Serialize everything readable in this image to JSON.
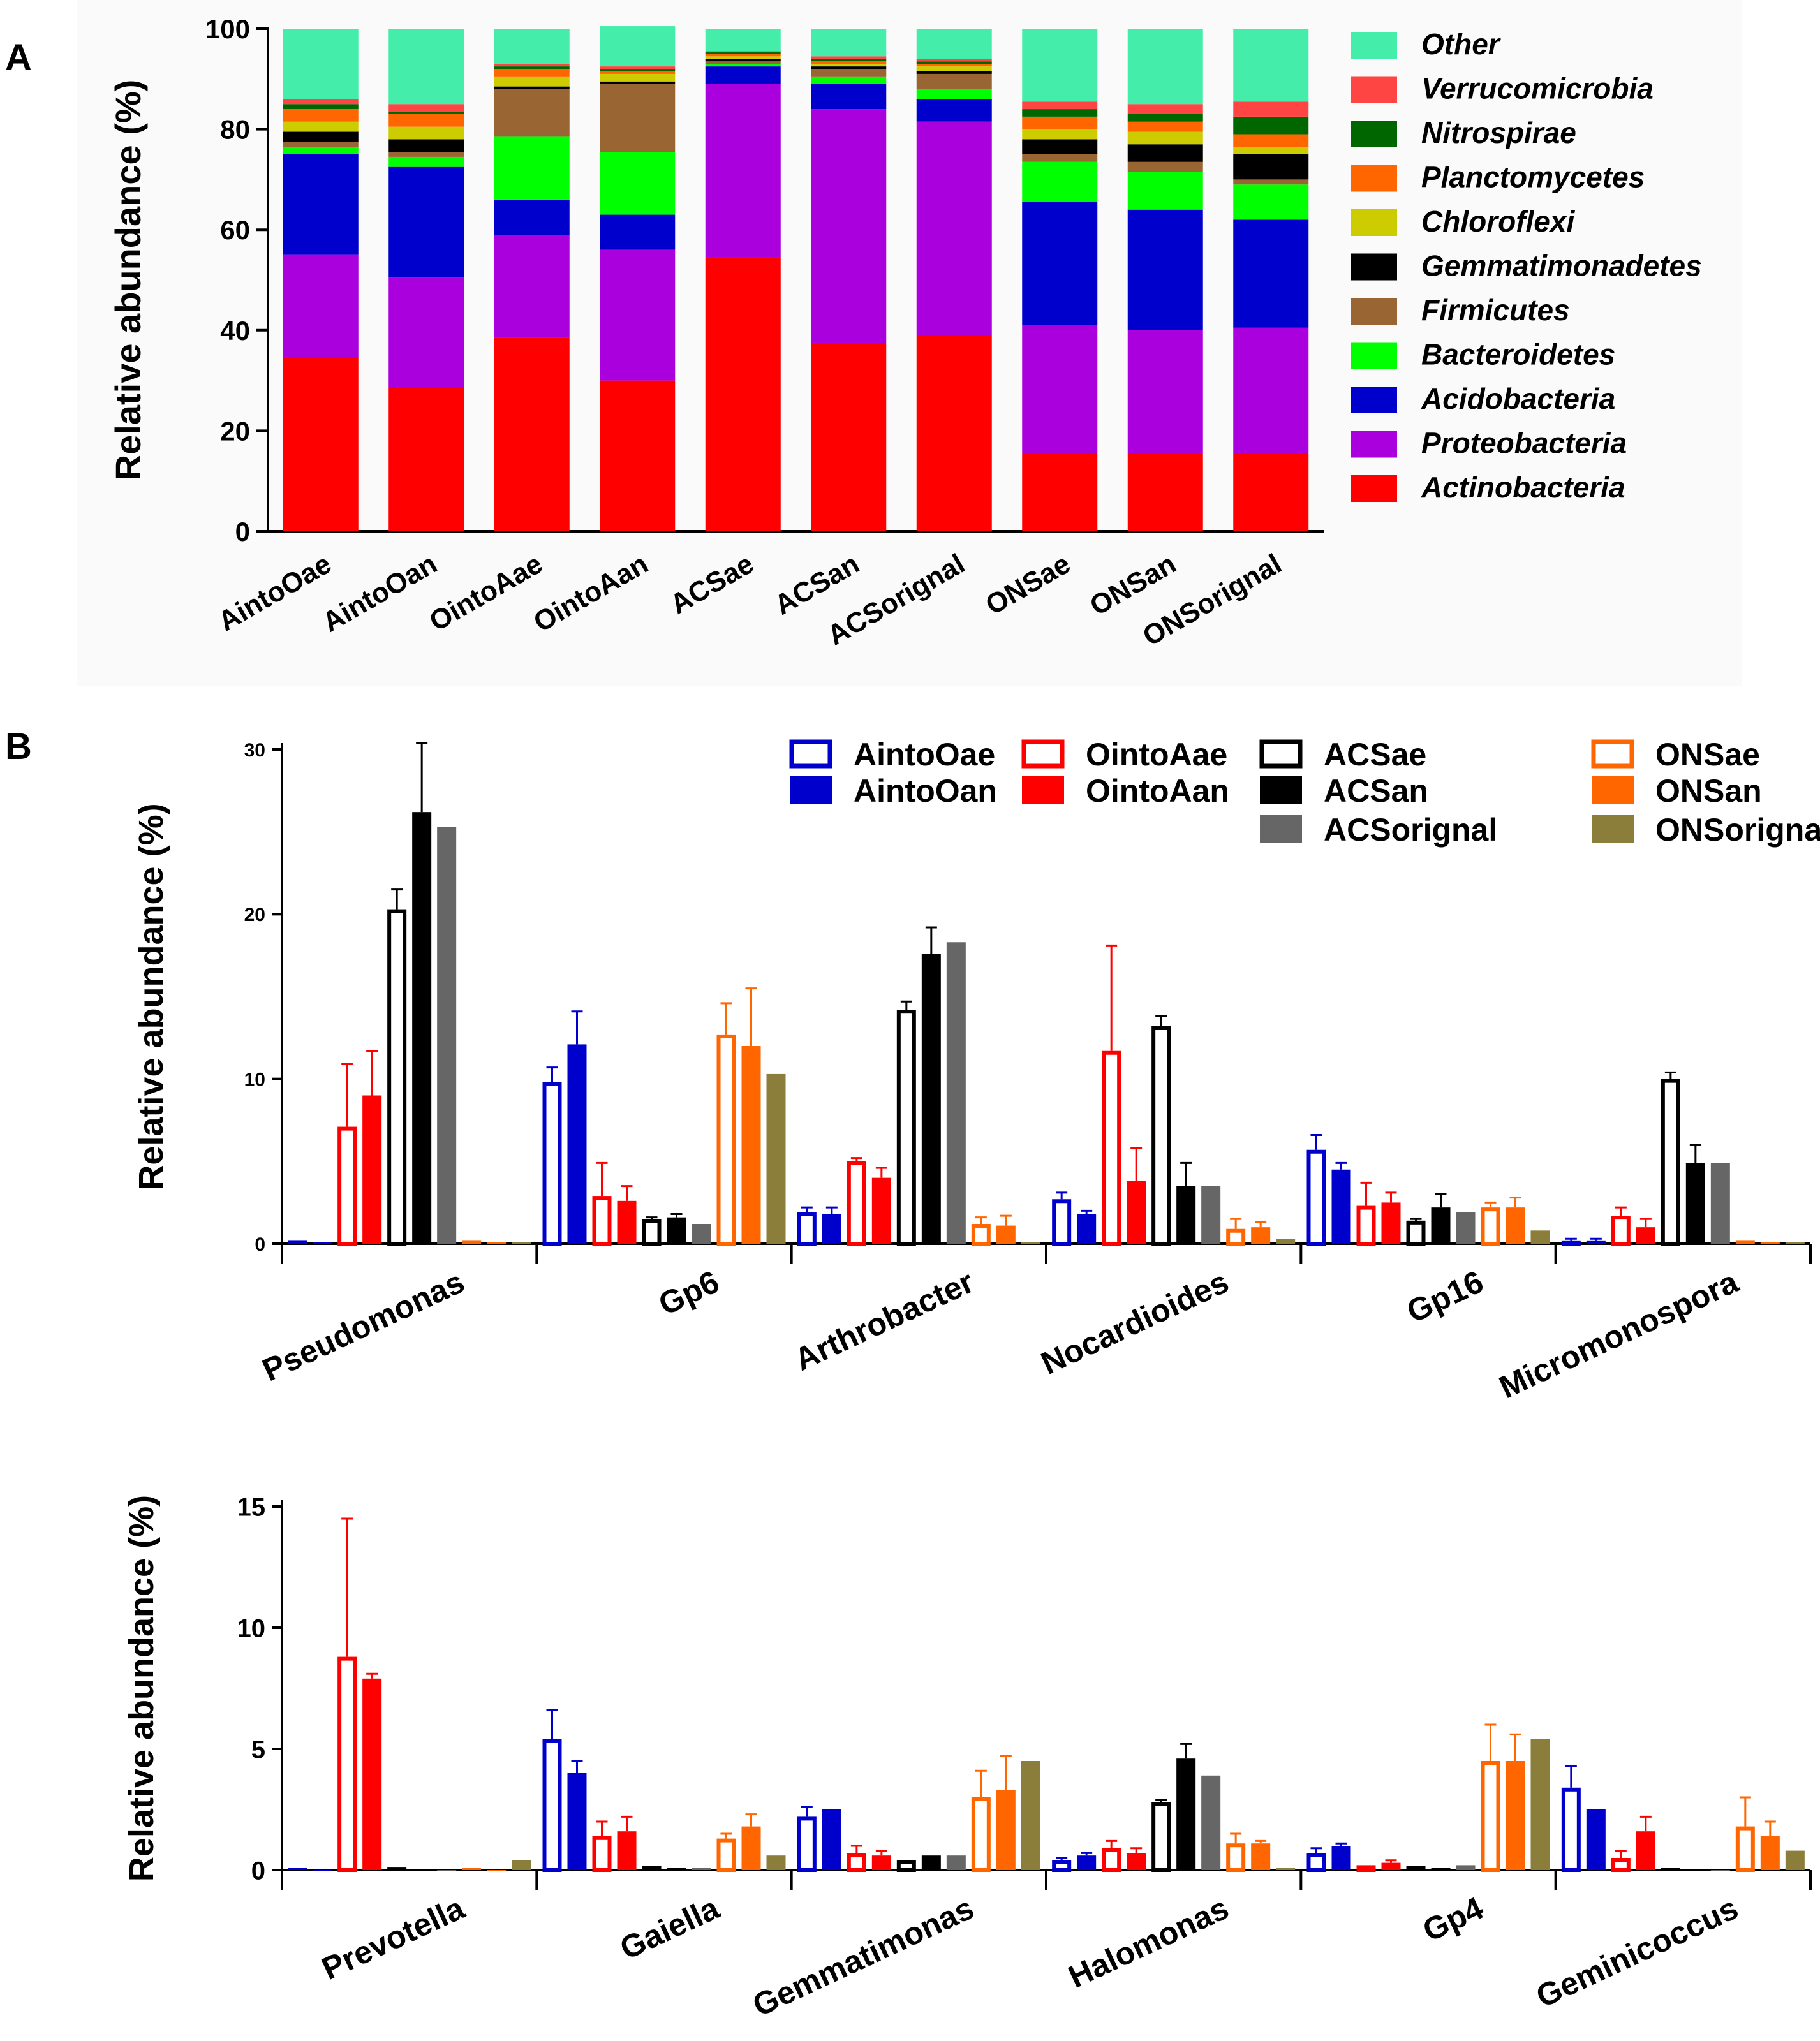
{
  "figure": {
    "panel_a_label": "A",
    "panel_b_label": "B"
  },
  "chart_data": [
    {
      "panel": "A",
      "type": "bar",
      "stacked": true,
      "ylabel": "Relative abundance (%)",
      "ylim": [
        0,
        100
      ],
      "yticks": [
        "0",
        "20",
        "40",
        "60",
        "80",
        "100"
      ],
      "categories": [
        "AintoOae",
        "AintoOan",
        "OintoAae",
        "OintoAan",
        "ACSae",
        "ACSan",
        "ACSorignal",
        "ONSae",
        "ONSan",
        "ONSorignal"
      ],
      "legend_order": [
        "Other",
        "Verrucomicrobia",
        "Nitrospirae",
        "Planctomycetes",
        "Chloroflexi",
        "Gemmatimonadetes",
        "Firmicutes",
        "Bacteroidetes",
        "Acidobacteria",
        "Proteobacteria",
        "Actinobacteria"
      ],
      "series": [
        {
          "name": "Actinobacteria",
          "color": "#ff0000",
          "values": [
            34.5,
            28.5,
            38.5,
            30,
            54.5,
            37.5,
            39,
            15.5,
            15.5,
            15.5
          ]
        },
        {
          "name": "Proteobacteria",
          "color": "#aa00dd",
          "values": [
            20.5,
            22,
            20.5,
            26,
            34.5,
            46.5,
            42.5,
            25.5,
            24.5,
            25
          ]
        },
        {
          "name": "Acidobacteria",
          "color": "#0000cc",
          "values": [
            20,
            22,
            7,
            7,
            3.5,
            5,
            4.5,
            24.5,
            24,
            21.5
          ]
        },
        {
          "name": "Bacteroidetes",
          "color": "#00ff00",
          "values": [
            1.5,
            2,
            12.5,
            12.5,
            0.5,
            1.5,
            2,
            8,
            7.5,
            7
          ]
        },
        {
          "name": "Firmicutes",
          "color": "#996633",
          "values": [
            1,
            1,
            9.5,
            13.5,
            0.5,
            1.5,
            3,
            1.5,
            2,
            1
          ]
        },
        {
          "name": "Gemmatimonadetes",
          "color": "#000000",
          "values": [
            2,
            2.5,
            0.5,
            0.5,
            0.5,
            0.5,
            0.5,
            3,
            3.5,
            5
          ]
        },
        {
          "name": "Chloroflexi",
          "color": "#cccc00",
          "values": [
            2,
            2.5,
            2,
            1.5,
            0.5,
            0.5,
            1,
            2,
            2.5,
            1.5
          ]
        },
        {
          "name": "Planctomycetes",
          "color": "#ff6600",
          "values": [
            2.5,
            2.5,
            1.5,
            0.5,
            0.5,
            0.5,
            0.5,
            2.5,
            2,
            2.5
          ]
        },
        {
          "name": "Nitrospirae",
          "color": "#006600",
          "values": [
            1,
            0.5,
            0.5,
            0.5,
            0.3,
            0.5,
            0.5,
            1.5,
            1.5,
            3.5
          ]
        },
        {
          "name": "Verrucomicrobia",
          "color": "#ff4444",
          "values": [
            1,
            1.5,
            0.5,
            0.5,
            0.2,
            0.5,
            0.5,
            1.5,
            2,
            3
          ]
        },
        {
          "name": "Other",
          "color": "#44eeaa",
          "values": [
            14,
            15,
            7,
            8,
            4.5,
            5.5,
            6,
            14.5,
            15,
            14.5
          ]
        }
      ]
    },
    {
      "panel": "B-top",
      "type": "bar",
      "ylabel": "Relative abundance (%)",
      "ylim": [
        0,
        30
      ],
      "yticks": [
        "0",
        "10",
        "20",
        "30"
      ],
      "categories": [
        "Pseudomonas",
        "Gp6",
        "Arthrobacter",
        "Nocardioides",
        "Gp16",
        "Micromonospora"
      ],
      "series": [
        {
          "name": "AintoOae",
          "color": "#0000cc",
          "hollow": true,
          "values": [
            0.1,
            9.8,
            1.9,
            2.7,
            5.7,
            0.2
          ],
          "errors": [
            0,
            0.9,
            0.3,
            0.4,
            0.9,
            0.1
          ]
        },
        {
          "name": "AintoOan",
          "color": "#0000cc",
          "hollow": false,
          "values": [
            0.1,
            12.1,
            1.8,
            1.8,
            4.5,
            0.2
          ],
          "errors": [
            0,
            2.0,
            0.4,
            0.2,
            0.4,
            0.1
          ]
        },
        {
          "name": "OintoAae",
          "color": "#ff0000",
          "hollow": true,
          "values": [
            7.1,
            2.9,
            5.0,
            11.7,
            2.3,
            1.7
          ],
          "errors": [
            3.8,
            2.0,
            0.2,
            6.4,
            1.4,
            0.5
          ]
        },
        {
          "name": "OintoAan",
          "color": "#ff0000",
          "hollow": false,
          "values": [
            9.0,
            2.6,
            4.0,
            3.8,
            2.5,
            1.0
          ],
          "errors": [
            2.7,
            0.9,
            0.6,
            2.0,
            0.6,
            0.5
          ]
        },
        {
          "name": "ACSae",
          "color": "#000000",
          "hollow": true,
          "values": [
            20.3,
            1.5,
            14.2,
            13.2,
            1.4,
            10.0
          ],
          "errors": [
            1.2,
            0.1,
            0.5,
            0.6,
            0.1,
            0.4
          ]
        },
        {
          "name": "ACSan",
          "color": "#000000",
          "hollow": false,
          "values": [
            26.2,
            1.6,
            17.6,
            3.5,
            2.2,
            4.9
          ],
          "errors": [
            4.2,
            0.2,
            1.6,
            1.4,
            0.8,
            1.1
          ]
        },
        {
          "name": "ACSorignal",
          "color": "#666666",
          "hollow": false,
          "values": [
            25.3,
            1.2,
            18.3,
            3.5,
            1.9,
            4.9
          ],
          "errors": [
            0,
            0,
            0,
            0,
            0,
            0
          ]
        },
        {
          "name": "ONSae",
          "color": "#ff6600",
          "hollow": true,
          "values": [
            0.1,
            12.7,
            1.2,
            0.9,
            2.2,
            0.1
          ],
          "errors": [
            0,
            1.9,
            0.4,
            0.6,
            0.3,
            0
          ]
        },
        {
          "name": "ONSan",
          "color": "#ff6600",
          "hollow": false,
          "values": [
            0.1,
            12.0,
            1.1,
            1.0,
            2.2,
            0.1
          ],
          "errors": [
            0,
            3.5,
            0.6,
            0.3,
            0.6,
            0
          ]
        },
        {
          "name": "ONSorignal",
          "color": "#8b7d3a",
          "hollow": false,
          "values": [
            0.1,
            10.3,
            0.1,
            0.3,
            0.8,
            0.1
          ],
          "errors": [
            0,
            0,
            0,
            0,
            0,
            0
          ]
        }
      ]
    },
    {
      "panel": "B-bottom",
      "type": "bar",
      "ylabel": "Relative abundance (%)",
      "ylim": [
        0,
        15
      ],
      "yticks": [
        "0",
        "5",
        "10",
        "15"
      ],
      "categories": [
        "Prevotella",
        "Gaiella",
        "Gemmatimonas",
        "Halomonas",
        "Gp4",
        "Geminicoccus"
      ],
      "series": [
        {
          "name": "AintoOae",
          "color": "#0000cc",
          "hollow": true,
          "values": [
            0,
            5.4,
            2.2,
            0.4,
            0.7,
            3.4
          ],
          "errors": [
            0,
            1.2,
            0.4,
            0.1,
            0.2,
            0.9
          ]
        },
        {
          "name": "AintoOan",
          "color": "#0000cc",
          "hollow": false,
          "values": [
            0,
            4.0,
            2.5,
            0.6,
            1.0,
            2.5
          ],
          "errors": [
            0,
            0.5,
            0,
            0.1,
            0.1,
            0
          ]
        },
        {
          "name": "OintoAae",
          "color": "#ff0000",
          "hollow": true,
          "values": [
            8.8,
            1.4,
            0.7,
            0.9,
            0.2,
            0.5
          ],
          "errors": [
            5.7,
            0.6,
            0.3,
            0.3,
            0,
            0.3
          ]
        },
        {
          "name": "OintoAan",
          "color": "#ff0000",
          "hollow": false,
          "values": [
            7.9,
            1.6,
            0.6,
            0.7,
            0.3,
            1.6
          ],
          "errors": [
            0.2,
            0.6,
            0.2,
            0.2,
            0.1,
            0.6
          ]
        },
        {
          "name": "ACSae",
          "color": "#000000",
          "hollow": true,
          "values": [
            0.05,
            0.1,
            0.4,
            2.8,
            0.1,
            0
          ],
          "errors": [
            0,
            0,
            0,
            0.1,
            0,
            0
          ]
        },
        {
          "name": "ACSan",
          "color": "#000000",
          "hollow": false,
          "values": [
            0.05,
            0.1,
            0.6,
            4.6,
            0.1,
            0
          ],
          "errors": [
            0,
            0,
            0,
            0.6,
            0,
            0
          ]
        },
        {
          "name": "ACSorignal",
          "color": "#666666",
          "hollow": false,
          "values": [
            0,
            0.1,
            0.6,
            3.9,
            0.2,
            0
          ],
          "errors": [
            0,
            0,
            0,
            0,
            0,
            0
          ]
        },
        {
          "name": "ONSae",
          "color": "#ff6600",
          "hollow": true,
          "values": [
            0,
            1.3,
            3.0,
            1.1,
            4.5,
            1.8
          ],
          "errors": [
            0,
            0.2,
            1.1,
            0.4,
            1.5,
            1.2
          ]
        },
        {
          "name": "ONSan",
          "color": "#ff6600",
          "hollow": false,
          "values": [
            0,
            1.8,
            3.3,
            1.1,
            4.5,
            1.4
          ],
          "errors": [
            0,
            0.5,
            1.4,
            0.1,
            1.1,
            0.6
          ]
        },
        {
          "name": "ONSorignal",
          "color": "#8b7d3a",
          "hollow": false,
          "values": [
            0.4,
            0.6,
            4.5,
            0.1,
            5.4,
            0.8
          ],
          "errors": [
            0,
            0,
            0,
            0,
            0,
            0
          ]
        }
      ]
    }
  ],
  "legend_b": {
    "columns": [
      [
        "AintoOae",
        "AintoOan"
      ],
      [
        "OintoAae",
        "OintoAan"
      ],
      [
        "ACSae",
        "ACSan",
        "ACSorignal"
      ],
      [
        "ONSae",
        "ONSan",
        "ONSorignal"
      ]
    ]
  }
}
